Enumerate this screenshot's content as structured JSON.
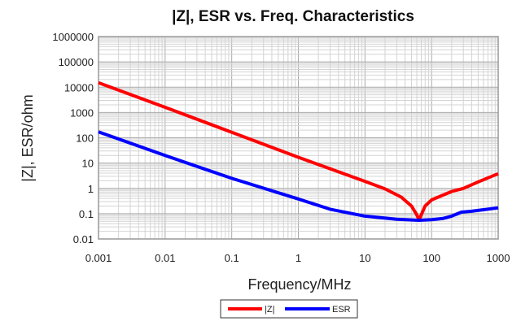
{
  "chart_data": {
    "type": "line",
    "title": "|Z|, ESR vs. Freq. Characteristics",
    "xlabel": "Frequency/MHz",
    "ylabel": "|Z|, ESR/ohm",
    "xscale": "log",
    "yscale": "log",
    "xlim": [
      0.001,
      1000
    ],
    "ylim": [
      0.01,
      1000000
    ],
    "x_ticks": [
      "0.001",
      "0.01",
      "0.1",
      "1",
      "10",
      "100",
      "1000"
    ],
    "y_ticks": [
      "1000000",
      "100000",
      "10000",
      "1000",
      "100",
      "10",
      "1",
      "0.1",
      "0.01"
    ],
    "grid": true,
    "legend_position": "bottom",
    "series": [
      {
        "name": "|Z|",
        "color": "#ff0000",
        "points": [
          [
            0.001,
            15000
          ],
          [
            0.01,
            1600
          ],
          [
            0.1,
            165
          ],
          [
            1,
            17
          ],
          [
            10,
            1.9
          ],
          [
            20,
            0.95
          ],
          [
            35,
            0.45
          ],
          [
            50,
            0.2
          ],
          [
            60,
            0.09
          ],
          [
            65,
            0.055
          ],
          [
            70,
            0.09
          ],
          [
            80,
            0.2
          ],
          [
            100,
            0.35
          ],
          [
            200,
            0.75
          ],
          [
            300,
            1.0
          ],
          [
            500,
            1.8
          ],
          [
            1000,
            3.8
          ]
        ]
      },
      {
        "name": "ESR",
        "color": "#0000ff",
        "points": [
          [
            0.001,
            170
          ],
          [
            0.01,
            20
          ],
          [
            0.1,
            2.5
          ],
          [
            1,
            0.38
          ],
          [
            3,
            0.15
          ],
          [
            10,
            0.08
          ],
          [
            30,
            0.06
          ],
          [
            65,
            0.055
          ],
          [
            100,
            0.058
          ],
          [
            150,
            0.065
          ],
          [
            200,
            0.08
          ],
          [
            280,
            0.115
          ],
          [
            400,
            0.125
          ],
          [
            1000,
            0.17
          ]
        ]
      }
    ]
  }
}
